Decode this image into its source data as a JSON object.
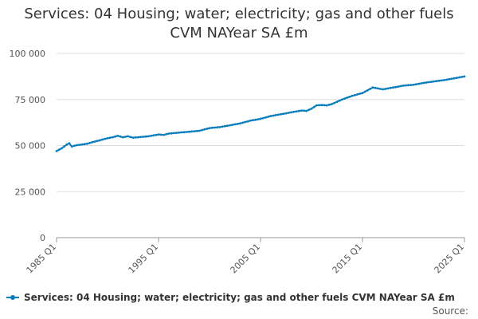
{
  "colors": {
    "series": "#0a7dbd",
    "grid": "#dddddd",
    "axis": "#999999"
  },
  "chart_data": {
    "type": "line",
    "title_line1": "Services: 04 Housing; water; electricity; gas and other fuels",
    "title_line2": "CVM NAYear SA £m",
    "xlabel": "",
    "ylabel": "",
    "ylim": [
      0,
      100000
    ],
    "y_ticks": [
      0,
      25000,
      50000,
      75000,
      100000
    ],
    "y_tick_labels": [
      "0",
      "25 000",
      "50 000",
      "75 000",
      "100 000"
    ],
    "x_range": [
      1985,
      2025
    ],
    "x_ticks": [
      1985,
      1995,
      2005,
      2015,
      2025
    ],
    "x_tick_labels": [
      "1985 Q1",
      "1995 Q1",
      "2005 Q1",
      "2015 Q1",
      "2025 Q1"
    ],
    "legend_position": "bottom",
    "series": [
      {
        "name": "Services: 04 Housing; water; electricity; gas and other fuels CVM NAYear SA £m",
        "anchors": [
          [
            1985.0,
            47000
          ],
          [
            1985.5,
            48500
          ],
          [
            1986.0,
            50500
          ],
          [
            1986.25,
            51200
          ],
          [
            1986.5,
            49500
          ],
          [
            1987.0,
            50200
          ],
          [
            1987.5,
            50600
          ],
          [
            1988.0,
            51000
          ],
          [
            1988.5,
            51800
          ],
          [
            1989.0,
            52500
          ],
          [
            1990.0,
            54000
          ],
          [
            1990.5,
            54500
          ],
          [
            1991.0,
            55300
          ],
          [
            1991.5,
            54500
          ],
          [
            1992.0,
            55000
          ],
          [
            1992.5,
            54300
          ],
          [
            1993.0,
            54500
          ],
          [
            1994.0,
            55000
          ],
          [
            1995.0,
            56000
          ],
          [
            1995.5,
            55800
          ],
          [
            1996.0,
            56500
          ],
          [
            1997.0,
            57000
          ],
          [
            1998.0,
            57500
          ],
          [
            1999.0,
            58000
          ],
          [
            2000.0,
            59500
          ],
          [
            2001.0,
            60000
          ],
          [
            2002.0,
            61000
          ],
          [
            2003.0,
            62000
          ],
          [
            2004.0,
            63500
          ],
          [
            2005.0,
            64500
          ],
          [
            2006.0,
            66000
          ],
          [
            2007.0,
            67000
          ],
          [
            2008.0,
            68000
          ],
          [
            2009.0,
            69000
          ],
          [
            2009.5,
            68800
          ],
          [
            2010.0,
            70000
          ],
          [
            2010.5,
            71800
          ],
          [
            2011.0,
            72000
          ],
          [
            2011.5,
            71800
          ],
          [
            2012.0,
            72500
          ],
          [
            2013.0,
            75000
          ],
          [
            2014.0,
            77000
          ],
          [
            2015.0,
            78500
          ],
          [
            2015.5,
            80000
          ],
          [
            2016.0,
            81500
          ],
          [
            2016.5,
            81000
          ],
          [
            2017.0,
            80500
          ],
          [
            2018.0,
            81500
          ],
          [
            2019.0,
            82500
          ],
          [
            2020.0,
            83000
          ],
          [
            2021.0,
            84000
          ],
          [
            2022.0,
            84800
          ],
          [
            2023.0,
            85500
          ],
          [
            2024.0,
            86500
          ],
          [
            2025.0,
            87500
          ]
        ]
      }
    ]
  },
  "legend": {
    "label": "Services: 04 Housing; water; electricity; gas and other fuels CVM NAYear SA £m"
  },
  "footer": {
    "source_label": "Source:"
  }
}
